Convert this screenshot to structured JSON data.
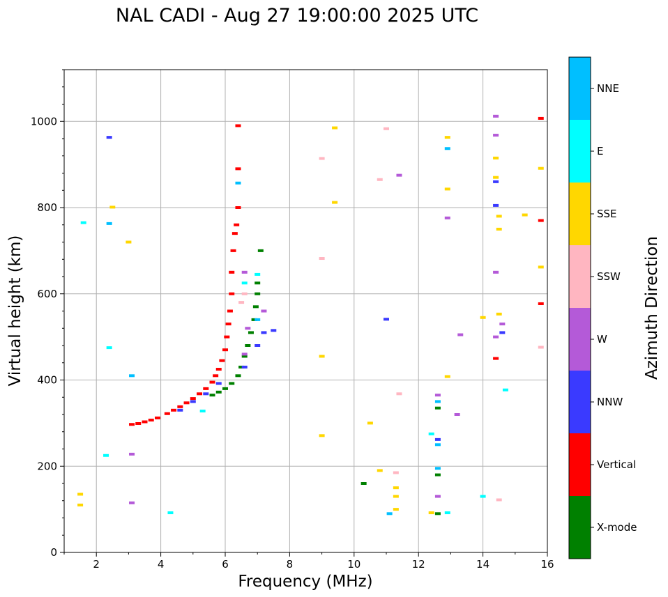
{
  "chart_data": {
    "type": "scatter",
    "title": "NAL CADI - Aug 27 19:00:00 2025 UTC",
    "xlabel": "Frequency (MHz)",
    "ylabel": "Virtual height (km)",
    "xlim": [
      1,
      16
    ],
    "ylim": [
      0,
      1120
    ],
    "xticks": [
      2,
      4,
      6,
      8,
      10,
      12,
      14,
      16
    ],
    "yticks": [
      0,
      200,
      400,
      600,
      800,
      1000
    ],
    "grid": true,
    "colorbar": {
      "label": "Azimuth Direction",
      "categories": [
        {
          "name": "X-mode",
          "color": "#008000"
        },
        {
          "name": "Vertical",
          "color": "#ff0000"
        },
        {
          "name": "NNW",
          "color": "#3a3aff"
        },
        {
          "name": "W",
          "color": "#b45ad8"
        },
        {
          "name": "SSW",
          "color": "#ffb6c1"
        },
        {
          "name": "SSE",
          "color": "#ffd700"
        },
        {
          "name": "E",
          "color": "#00ffff"
        },
        {
          "name": "NNE",
          "color": "#00bfff"
        }
      ]
    },
    "series": [
      {
        "name": "Vertical",
        "points": [
          [
            3.1,
            297
          ],
          [
            3.3,
            299
          ],
          [
            3.5,
            303
          ],
          [
            3.7,
            307
          ],
          [
            3.9,
            312
          ],
          [
            4.2,
            322
          ],
          [
            4.4,
            330
          ],
          [
            4.6,
            338
          ],
          [
            4.8,
            347
          ],
          [
            5.0,
            357
          ],
          [
            5.2,
            368
          ],
          [
            5.4,
            380
          ],
          [
            5.6,
            395
          ],
          [
            5.7,
            410
          ],
          [
            5.8,
            425
          ],
          [
            5.9,
            445
          ],
          [
            6.0,
            470
          ],
          [
            6.05,
            500
          ],
          [
            6.1,
            530
          ],
          [
            6.15,
            560
          ],
          [
            6.2,
            600
          ],
          [
            6.2,
            650
          ],
          [
            6.25,
            700
          ],
          [
            6.3,
            740
          ],
          [
            6.35,
            760
          ],
          [
            6.4,
            800
          ],
          [
            6.4,
            890
          ],
          [
            6.4,
            990
          ],
          [
            15.8,
            1007
          ],
          [
            15.8,
            770
          ],
          [
            15.8,
            577
          ],
          [
            14.4,
            450
          ]
        ]
      },
      {
        "name": "X-mode",
        "points": [
          [
            5.6,
            365
          ],
          [
            5.8,
            372
          ],
          [
            6.0,
            380
          ],
          [
            6.2,
            392
          ],
          [
            6.4,
            410
          ],
          [
            6.5,
            430
          ],
          [
            6.6,
            455
          ],
          [
            6.7,
            480
          ],
          [
            6.8,
            510
          ],
          [
            6.9,
            540
          ],
          [
            6.95,
            570
          ],
          [
            7.0,
            600
          ],
          [
            7.0,
            625
          ],
          [
            7.1,
            700
          ],
          [
            12.6,
            90
          ],
          [
            12.6,
            180
          ],
          [
            12.6,
            335
          ],
          [
            10.3,
            160
          ]
        ]
      },
      {
        "name": "NNW",
        "points": [
          [
            4.6,
            330
          ],
          [
            5.0,
            350
          ],
          [
            5.4,
            368
          ],
          [
            5.8,
            392
          ],
          [
            6.6,
            430
          ],
          [
            7.0,
            480
          ],
          [
            7.2,
            510
          ],
          [
            7.5,
            515
          ],
          [
            12.6,
            262
          ],
          [
            14.4,
            860
          ],
          [
            14.4,
            805
          ],
          [
            14.6,
            510
          ],
          [
            11.0,
            541
          ],
          [
            2.4,
            963
          ]
        ]
      },
      {
        "name": "W",
        "points": [
          [
            6.6,
            460
          ],
          [
            6.7,
            520
          ],
          [
            6.6,
            650
          ],
          [
            7.2,
            560
          ],
          [
            12.6,
            130
          ],
          [
            12.6,
            365
          ],
          [
            13.2,
            320
          ],
          [
            13.3,
            505
          ],
          [
            14.4,
            968
          ],
          [
            14.4,
            1012
          ],
          [
            14.4,
            650
          ],
          [
            14.4,
            500
          ],
          [
            14.6,
            530
          ],
          [
            12.9,
            776
          ],
          [
            11.4,
            875
          ],
          [
            3.1,
            228
          ],
          [
            3.1,
            115
          ]
        ]
      },
      {
        "name": "SSW",
        "points": [
          [
            6.5,
            580
          ],
          [
            6.6,
            600
          ],
          [
            11.0,
            983
          ],
          [
            15.8,
            476
          ],
          [
            14.5,
            122
          ],
          [
            11.4,
            368
          ],
          [
            9.0,
            914
          ],
          [
            9.0,
            682
          ],
          [
            11.3,
            185
          ],
          [
            10.8,
            865
          ]
        ]
      },
      {
        "name": "SSE",
        "points": [
          [
            11.3,
            100
          ],
          [
            11.3,
            130
          ],
          [
            11.3,
            150
          ],
          [
            10.8,
            190
          ],
          [
            12.4,
            92
          ],
          [
            12.9,
            408
          ],
          [
            12.9,
            843
          ],
          [
            12.9,
            963
          ],
          [
            14.4,
            915
          ],
          [
            14.4,
            870
          ],
          [
            14.5,
            553
          ],
          [
            14.5,
            750
          ],
          [
            14.5,
            780
          ],
          [
            15.3,
            783
          ],
          [
            15.8,
            891
          ],
          [
            15.8,
            662
          ],
          [
            14.0,
            545
          ],
          [
            9.0,
            455
          ],
          [
            9.0,
            271
          ],
          [
            9.4,
            812
          ],
          [
            9.4,
            985
          ],
          [
            10.5,
            300
          ],
          [
            3.0,
            720
          ],
          [
            2.5,
            801
          ],
          [
            1.5,
            135
          ],
          [
            1.5,
            110
          ]
        ]
      },
      {
        "name": "E",
        "points": [
          [
            6.6,
            625
          ],
          [
            7.0,
            645
          ],
          [
            14.7,
            377
          ],
          [
            14.0,
            130
          ],
          [
            12.4,
            275
          ],
          [
            12.9,
            92
          ],
          [
            2.3,
            225
          ],
          [
            2.4,
            475
          ],
          [
            1.6,
            765
          ],
          [
            4.3,
            92
          ],
          [
            5.3,
            328
          ]
        ]
      },
      {
        "name": "NNE",
        "points": [
          [
            12.6,
            195
          ],
          [
            12.6,
            250
          ],
          [
            12.6,
            350
          ],
          [
            6.4,
            857
          ],
          [
            7.0,
            540
          ],
          [
            3.1,
            410
          ],
          [
            2.4,
            763
          ],
          [
            12.9,
            937
          ],
          [
            11.1,
            90
          ]
        ]
      }
    ]
  }
}
